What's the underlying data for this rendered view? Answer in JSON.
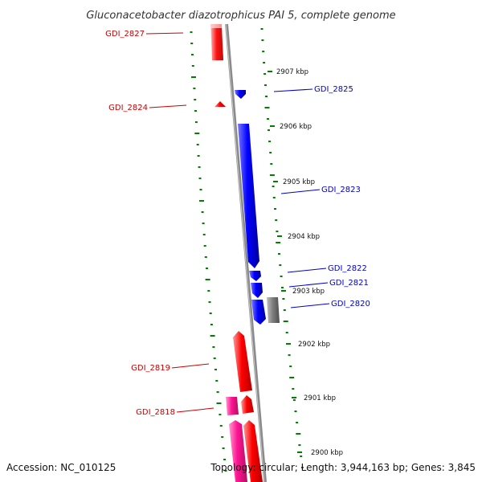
{
  "title": "Gluconacetobacter diazotrophicus PAI 5, complete genome",
  "accession": "Accession: NC_010125",
  "topology": "Topology: circular; Length: 3,944,163 bp; Genes: 3,845",
  "colors": {
    "backbone": "#7a7a7a",
    "reverse_gene": "#ff0000",
    "forward_gene": "#0000ff",
    "rna": "#ff1493",
    "pseudo": "#808080",
    "gc_ticks": "#008000",
    "reverse_label": "#cc0000",
    "forward_label": "#0000cc"
  },
  "kbp_labels": [
    "2907 kbp",
    "2906 kbp",
    "2905 kbp",
    "2904 kbp",
    "2903 kbp",
    "2902 kbp",
    "2901 kbp",
    "2900 kbp"
  ],
  "forward_genes": [
    "GDI_2825",
    "GDI_2823",
    "GDI_2822",
    "GDI_2821",
    "GDI_2820"
  ],
  "reverse_genes": [
    "GDI_2827",
    "GDI_2824",
    "GDI_2819",
    "GDI_2818"
  ]
}
